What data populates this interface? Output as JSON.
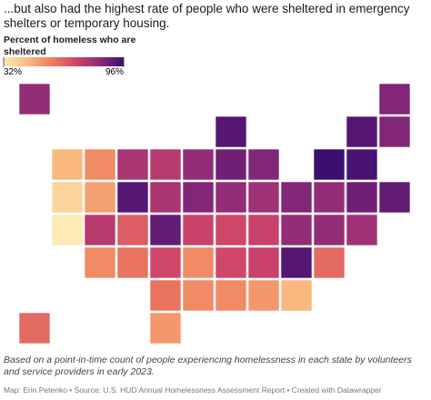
{
  "header": {
    "title": "...but also had the highest rate of people who were sheltered in emergency shelters or temporary housing."
  },
  "legend": {
    "title": "Percent of homeless who are sheltered",
    "min": {
      "value": 32,
      "label": "32%"
    },
    "max": {
      "value": 96,
      "label": "96%"
    },
    "colors": [
      "#fdeab5",
      "#f9b97f",
      "#ef7f5e",
      "#d0456a",
      "#8e2a78",
      "#3b0f70"
    ]
  },
  "map": {
    "values": [
      82,
      85,
      92,
      92,
      85,
      45,
      55,
      78,
      75,
      82,
      88,
      85,
      96,
      94,
      38,
      50,
      92,
      78,
      85,
      82,
      80,
      85,
      82,
      88,
      90,
      32,
      75,
      65,
      90,
      72,
      70,
      72,
      82,
      82,
      80,
      55,
      60,
      70,
      55,
      70,
      72,
      92,
      62,
      60,
      55,
      55,
      52,
      45,
      62,
      52
    ]
  },
  "footer": {
    "note": "Based on a point-in-time count of people experiencing homelessness in each state by volunteers and service providers in early 2023.",
    "source": "Map: Erin Petenko • Source: U.S. HUD Annual Homelessness Assessment Report • Created with Datawrapper"
  }
}
